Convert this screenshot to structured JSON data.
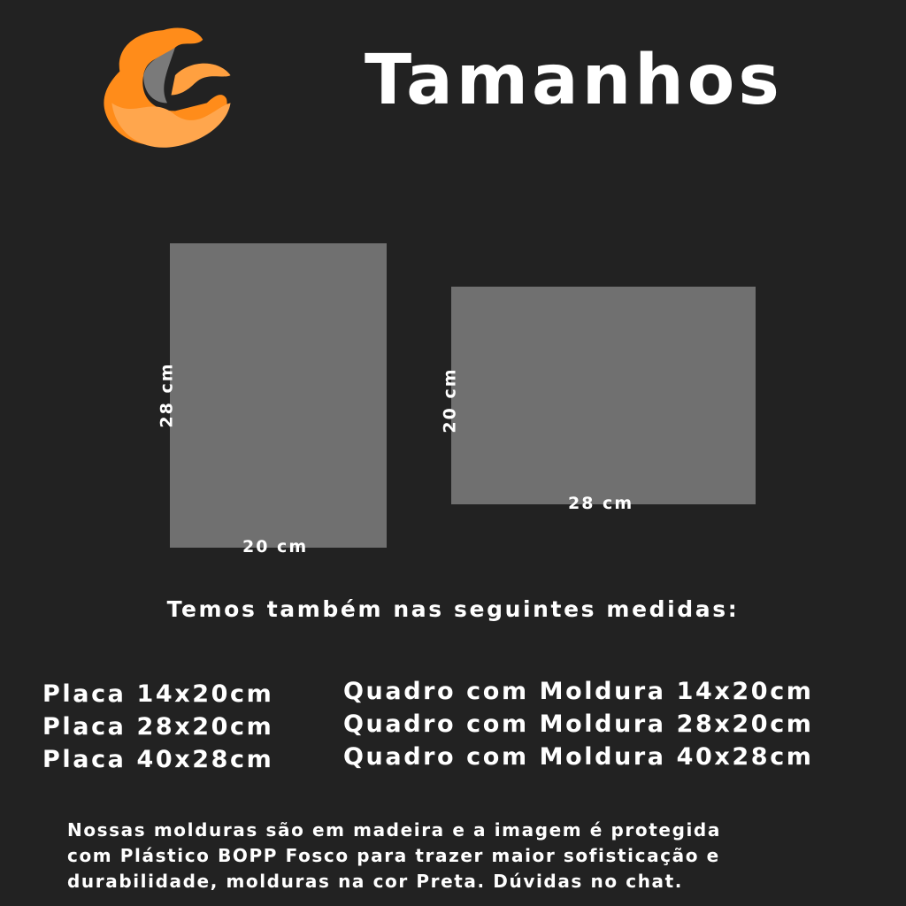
{
  "header": {
    "logo_icon": "orange-swirl-c-logo",
    "title": "Tamanhos"
  },
  "colors": {
    "background": "#222222",
    "frame": "#707070",
    "accent": "#ff8c1a",
    "text": "#ffffff"
  },
  "frames": [
    {
      "width_label": "20 cm",
      "height_label": "28 cm"
    },
    {
      "width_label": "28 cm",
      "height_label": "20 cm"
    }
  ],
  "subtitle": "Temos também nas seguintes medidas:",
  "placas": [
    "Placa 14x20cm",
    "Placa 28x20cm",
    "Placa 40x28cm"
  ],
  "quadros": [
    "Quadro com Moldura 14x20cm",
    "Quadro com Moldura 28x20cm",
    "Quadro com Moldura 40x28cm"
  ],
  "note": [
    "Nossas molduras são em madeira e a imagem é protegida",
    "com Plástico BOPP Fosco para trazer maior sofisticação e",
    "durabilidade, molduras na cor Preta. Dúvidas no chat."
  ]
}
